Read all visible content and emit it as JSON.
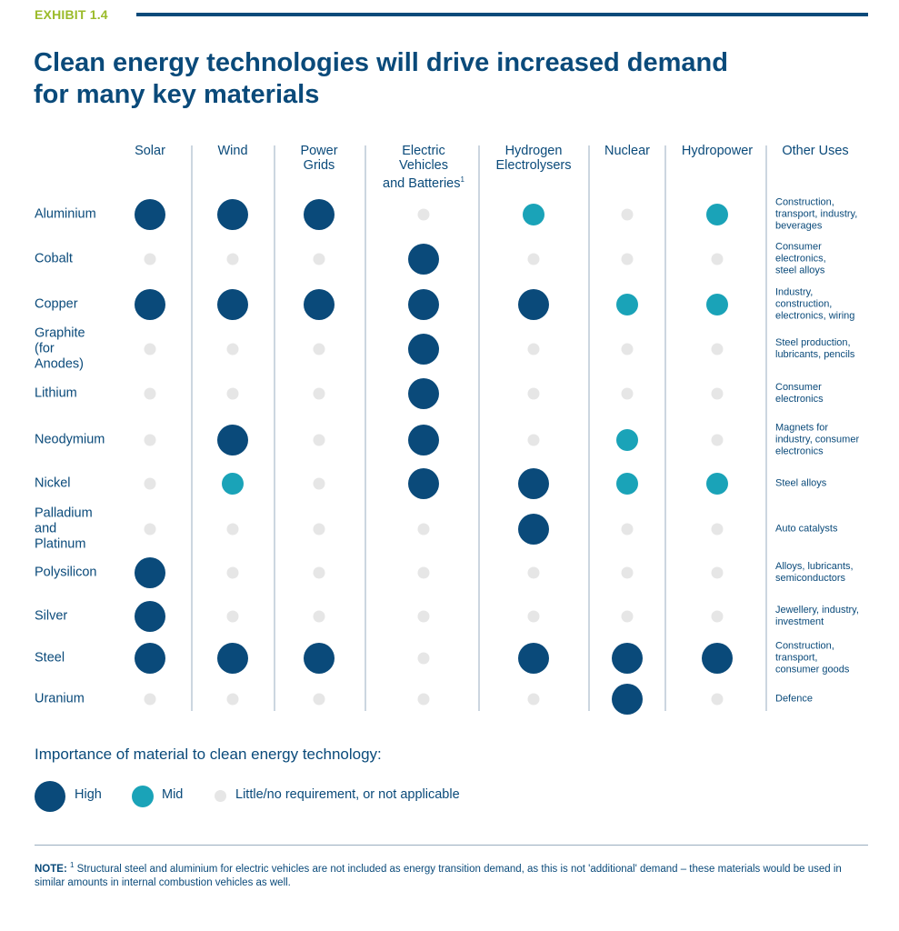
{
  "header": {
    "exhibit": "EXHIBIT 1.4"
  },
  "title_lines": [
    "Clean energy technologies will drive increased demand",
    "for many key materials"
  ],
  "colors": {
    "high": "#0a4a7a",
    "mid": "#1aa3b8",
    "low": "#e6e6e6",
    "accent": "#9bbb2a"
  },
  "chart_data": {
    "type": "table",
    "columns": [
      {
        "label": "Solar"
      },
      {
        "label": "Wind"
      },
      {
        "label": "Power\nGrids"
      },
      {
        "label": "Electric\nVehicles\nand Batteries",
        "footnote": "1"
      },
      {
        "label": "Hydrogen\nElectrolysers"
      },
      {
        "label": "Nuclear"
      },
      {
        "label": "Hydropower"
      }
    ],
    "other_uses_header": "Other Uses",
    "levels": {
      "H": "High",
      "M": "Mid",
      "L": "Little/no requirement, or not applicable"
    },
    "rows": [
      {
        "material": "Aluminium",
        "values": [
          "H",
          "H",
          "H",
          "L",
          "M",
          "L",
          "M"
        ],
        "other_uses": "Construction,\ntransport, industry,\nbeverages"
      },
      {
        "material": "Cobalt",
        "values": [
          "L",
          "L",
          "L",
          "H",
          "L",
          "L",
          "L"
        ],
        "other_uses": "Consumer\nelectronics,\nsteel alloys"
      },
      {
        "material": "Copper",
        "values": [
          "H",
          "H",
          "H",
          "H",
          "H",
          "M",
          "M"
        ],
        "other_uses": "Industry,\nconstruction,\nelectronics, wiring"
      },
      {
        "material": "Graphite\n(for Anodes)",
        "values": [
          "L",
          "L",
          "L",
          "H",
          "L",
          "L",
          "L"
        ],
        "other_uses": "Steel production,\nlubricants, pencils"
      },
      {
        "material": "Lithium",
        "values": [
          "L",
          "L",
          "L",
          "H",
          "L",
          "L",
          "L"
        ],
        "other_uses": "Consumer\nelectronics"
      },
      {
        "material": "Neodymium",
        "values": [
          "L",
          "H",
          "L",
          "H",
          "L",
          "M",
          "L"
        ],
        "other_uses": "Magnets for\nindustry, consumer\nelectronics"
      },
      {
        "material": "Nickel",
        "values": [
          "L",
          "M",
          "L",
          "H",
          "H",
          "M",
          "M"
        ],
        "other_uses": "Steel alloys"
      },
      {
        "material": "Palladium\nand Platinum",
        "values": [
          "L",
          "L",
          "L",
          "L",
          "H",
          "L",
          "L"
        ],
        "other_uses": "Auto catalysts"
      },
      {
        "material": "Polysilicon",
        "values": [
          "H",
          "L",
          "L",
          "L",
          "L",
          "L",
          "L"
        ],
        "other_uses": "Alloys, lubricants,\nsemiconductors"
      },
      {
        "material": "Silver",
        "values": [
          "H",
          "L",
          "L",
          "L",
          "L",
          "L",
          "L"
        ],
        "other_uses": "Jewellery, industry,\ninvestment"
      },
      {
        "material": "Steel",
        "values": [
          "H",
          "H",
          "H",
          "L",
          "H",
          "H",
          "H"
        ],
        "other_uses": "Construction,\ntransport,\nconsumer goods"
      },
      {
        "material": "Uranium",
        "values": [
          "L",
          "L",
          "L",
          "L",
          "L",
          "H",
          "L"
        ],
        "other_uses": "Defence"
      }
    ]
  },
  "legend": {
    "title": "Importance of material to clean energy technology:",
    "high": "High",
    "mid": "Mid",
    "low": "Little/no requirement, or not applicable"
  },
  "note": {
    "label": "NOTE:",
    "footnote_mark": "1",
    "text": "Structural steel and aluminium for electric vehicles are not included as energy transition  demand, as this is not 'additional' demand – these materials would be used in similar amounts in  internal combustion vehicles as well."
  }
}
